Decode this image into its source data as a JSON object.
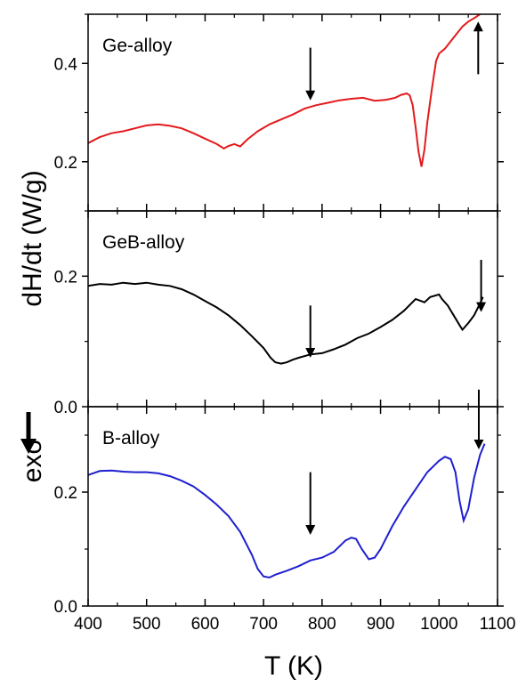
{
  "figure": {
    "ylabel": "dH/dt (W/g)",
    "exo_label": "exo",
    "xlabel": "T (K)"
  },
  "chart_data": [
    {
      "type": "line",
      "title": "Ge-alloy",
      "xlim": [
        400,
        1100
      ],
      "ylim": [
        0.1,
        0.5
      ],
      "yticks": [
        0.2,
        0.4
      ],
      "ytick_labels": [
        "0.2",
        "0.4"
      ],
      "color": "#e41a1c",
      "series": [
        {
          "values": [
            [
              400,
              0.238
            ],
            [
              420,
              0.25
            ],
            [
              440,
              0.258
            ],
            [
              460,
              0.262
            ],
            [
              480,
              0.268
            ],
            [
              500,
              0.274
            ],
            [
              520,
              0.276
            ],
            [
              540,
              0.273
            ],
            [
              560,
              0.268
            ],
            [
              580,
              0.258
            ],
            [
              600,
              0.247
            ],
            [
              620,
              0.236
            ],
            [
              632,
              0.227
            ],
            [
              640,
              0.232
            ],
            [
              650,
              0.236
            ],
            [
              660,
              0.231
            ],
            [
              672,
              0.245
            ],
            [
              690,
              0.262
            ],
            [
              710,
              0.276
            ],
            [
              730,
              0.286
            ],
            [
              750,
              0.296
            ],
            [
              770,
              0.308
            ],
            [
              790,
              0.315
            ],
            [
              810,
              0.32
            ],
            [
              830,
              0.325
            ],
            [
              850,
              0.328
            ],
            [
              870,
              0.33
            ],
            [
              890,
              0.324
            ],
            [
              910,
              0.326
            ],
            [
              925,
              0.33
            ],
            [
              935,
              0.336
            ],
            [
              945,
              0.339
            ],
            [
              950,
              0.335
            ],
            [
              955,
              0.315
            ],
            [
              960,
              0.27
            ],
            [
              965,
              0.22
            ],
            [
              970,
              0.19
            ],
            [
              975,
              0.225
            ],
            [
              980,
              0.28
            ],
            [
              988,
              0.35
            ],
            [
              995,
              0.405
            ],
            [
              1000,
              0.42
            ],
            [
              1010,
              0.43
            ],
            [
              1020,
              0.445
            ],
            [
              1030,
              0.46
            ],
            [
              1040,
              0.475
            ],
            [
              1050,
              0.485
            ],
            [
              1060,
              0.492
            ],
            [
              1070,
              0.5
            ]
          ]
        }
      ],
      "arrows": [
        {
          "x": 780,
          "y_from": 0.432,
          "y_to": 0.325,
          "direction": "down"
        },
        {
          "x": 1067,
          "y_from": 0.378,
          "y_to": 0.485,
          "direction": "up"
        }
      ]
    },
    {
      "type": "line",
      "title": "GeB-alloy",
      "xlim": [
        400,
        1100
      ],
      "ylim": [
        0.0,
        0.3
      ],
      "yticks": [
        0.0,
        0.2
      ],
      "ytick_labels": [
        "0.0",
        "0.2"
      ],
      "color": "#000000",
      "series": [
        {
          "values": [
            [
              400,
              0.185
            ],
            [
              420,
              0.188
            ],
            [
              440,
              0.187
            ],
            [
              460,
              0.19
            ],
            [
              480,
              0.188
            ],
            [
              500,
              0.19
            ],
            [
              520,
              0.187
            ],
            [
              540,
              0.185
            ],
            [
              560,
              0.18
            ],
            [
              580,
              0.172
            ],
            [
              600,
              0.162
            ],
            [
              620,
              0.152
            ],
            [
              640,
              0.14
            ],
            [
              660,
              0.125
            ],
            [
              680,
              0.108
            ],
            [
              700,
              0.09
            ],
            [
              712,
              0.075
            ],
            [
              720,
              0.068
            ],
            [
              730,
              0.066
            ],
            [
              740,
              0.068
            ],
            [
              750,
              0.072
            ],
            [
              760,
              0.075
            ],
            [
              780,
              0.08
            ],
            [
              800,
              0.082
            ],
            [
              820,
              0.088
            ],
            [
              840,
              0.095
            ],
            [
              860,
              0.105
            ],
            [
              880,
              0.112
            ],
            [
              900,
              0.122
            ],
            [
              920,
              0.133
            ],
            [
              940,
              0.147
            ],
            [
              960,
              0.165
            ],
            [
              975,
              0.16
            ],
            [
              985,
              0.168
            ],
            [
              1000,
              0.172
            ],
            [
              1005,
              0.165
            ],
            [
              1015,
              0.155
            ],
            [
              1025,
              0.14
            ],
            [
              1035,
              0.125
            ],
            [
              1040,
              0.118
            ],
            [
              1050,
              0.128
            ],
            [
              1060,
              0.14
            ],
            [
              1070,
              0.158
            ],
            [
              1075,
              0.168
            ]
          ]
        }
      ],
      "arrows": [
        {
          "x": 780,
          "y_from": 0.155,
          "y_to": 0.075,
          "direction": "down"
        },
        {
          "x": 1072,
          "y_from": 0.225,
          "y_to": 0.145,
          "direction": "down"
        }
      ]
    },
    {
      "type": "line",
      "title": "B-alloy",
      "xlim": [
        400,
        1100
      ],
      "ylim": [
        0.0,
        0.35
      ],
      "yticks": [
        0.0,
        0.2
      ],
      "ytick_labels": [
        "0.0",
        "0.2"
      ],
      "color": "#1f1fd0",
      "series": [
        {
          "values": [
            [
              400,
              0.23
            ],
            [
              420,
              0.237
            ],
            [
              440,
              0.238
            ],
            [
              460,
              0.236
            ],
            [
              480,
              0.235
            ],
            [
              500,
              0.235
            ],
            [
              520,
              0.233
            ],
            [
              540,
              0.228
            ],
            [
              560,
              0.22
            ],
            [
              580,
              0.21
            ],
            [
              600,
              0.195
            ],
            [
              620,
              0.178
            ],
            [
              640,
              0.158
            ],
            [
              660,
              0.13
            ],
            [
              680,
              0.09
            ],
            [
              690,
              0.065
            ],
            [
              700,
              0.052
            ],
            [
              710,
              0.05
            ],
            [
              720,
              0.055
            ],
            [
              740,
              0.062
            ],
            [
              760,
              0.07
            ],
            [
              780,
              0.08
            ],
            [
              800,
              0.085
            ],
            [
              820,
              0.095
            ],
            [
              840,
              0.115
            ],
            [
              850,
              0.12
            ],
            [
              858,
              0.118
            ],
            [
              868,
              0.1
            ],
            [
              880,
              0.082
            ],
            [
              890,
              0.085
            ],
            [
              900,
              0.1
            ],
            [
              920,
              0.14
            ],
            [
              940,
              0.175
            ],
            [
              960,
              0.205
            ],
            [
              980,
              0.235
            ],
            [
              1000,
              0.255
            ],
            [
              1010,
              0.262
            ],
            [
              1020,
              0.258
            ],
            [
              1028,
              0.235
            ],
            [
              1035,
              0.185
            ],
            [
              1042,
              0.15
            ],
            [
              1050,
              0.17
            ],
            [
              1060,
              0.225
            ],
            [
              1070,
              0.265
            ],
            [
              1078,
              0.285
            ]
          ]
        }
      ],
      "arrows": [
        {
          "x": 780,
          "y_from": 0.235,
          "y_to": 0.125,
          "direction": "down"
        },
        {
          "x": 1068,
          "y_from": 0.38,
          "y_to": 0.275,
          "direction": "down"
        }
      ]
    }
  ],
  "xaxis": {
    "ticks": [
      400,
      500,
      600,
      700,
      800,
      900,
      1000,
      1100
    ],
    "tick_labels": [
      "400",
      "500",
      "600",
      "700",
      "800",
      "900",
      "1000",
      "1100"
    ]
  }
}
